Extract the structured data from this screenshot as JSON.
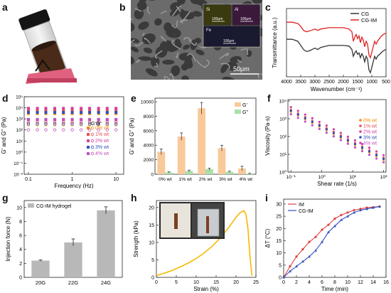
{
  "panels": {
    "a": {
      "label": "a"
    },
    "b": {
      "label": "b",
      "scale_main": "50μm",
      "inset_labels": [
        "Si",
        "Al",
        "Fe"
      ],
      "inset_scales": [
        "100μm",
        "100μm",
        "100μm"
      ]
    },
    "c": {
      "label": "c"
    },
    "d": {
      "label": "d"
    },
    "e": {
      "label": "e"
    },
    "f": {
      "label": "f"
    },
    "g": {
      "label": "g"
    },
    "h": {
      "label": "h"
    },
    "i": {
      "label": "i"
    }
  },
  "colors": {
    "cg": "#333333",
    "cgim": "#e02020",
    "orange_bar": "#f9c99a",
    "green_bar": "#a8e0a8",
    "gray_bar": "#b8b8b8",
    "strain_curve": "#f5b800",
    "im": "#e04040",
    "cgim_time": "#3050c0",
    "d_series": [
      "#f08c00",
      "#e85050",
      "#d23fa0",
      "#3050c0",
      "#c050c0"
    ]
  },
  "chart_data": [
    {
      "id": "c",
      "type": "line",
      "xlabel": "Wavenumber (cm⁻¹)",
      "ylabel": "Transmittance (a.u.)",
      "xticks": [
        "4000",
        "3500",
        "3000",
        "2500",
        "2000",
        "1500",
        "1000",
        "500"
      ],
      "xlim": [
        4000,
        500
      ],
      "ylim": [
        0,
        1
      ],
      "series": [
        {
          "name": "CG",
          "x": [
            4000,
            3800,
            3600,
            3500,
            3400,
            3300,
            3200,
            3000,
            2900,
            2800,
            2500,
            2200,
            2000,
            1800,
            1700,
            1650,
            1600,
            1550,
            1500,
            1450,
            1400,
            1350,
            1300,
            1250,
            1200,
            1150,
            1100,
            1050,
            1000,
            950,
            900,
            850,
            800,
            700,
            600,
            500
          ],
          "y": [
            0.55,
            0.55,
            0.52,
            0.46,
            0.4,
            0.37,
            0.38,
            0.42,
            0.4,
            0.43,
            0.46,
            0.46,
            0.46,
            0.45,
            0.4,
            0.3,
            0.35,
            0.38,
            0.33,
            0.35,
            0.28,
            0.34,
            0.3,
            0.22,
            0.3,
            0.26,
            0.1,
            0.06,
            0.14,
            0.22,
            0.3,
            0.26,
            0.3,
            0.34,
            0.38,
            0.4
          ]
        },
        {
          "name": "CG-IM",
          "x": [
            4000,
            3800,
            3600,
            3500,
            3400,
            3300,
            3200,
            3000,
            2900,
            2800,
            2500,
            2200,
            2000,
            1800,
            1700,
            1650,
            1600,
            1550,
            1500,
            1450,
            1400,
            1350,
            1300,
            1250,
            1200,
            1150,
            1100,
            1050,
            1000,
            950,
            900,
            850,
            800,
            700,
            600,
            500
          ],
          "y": [
            0.8,
            0.8,
            0.78,
            0.74,
            0.68,
            0.66,
            0.67,
            0.7,
            0.68,
            0.7,
            0.72,
            0.72,
            0.72,
            0.7,
            0.66,
            0.52,
            0.58,
            0.62,
            0.56,
            0.6,
            0.5,
            0.58,
            0.54,
            0.44,
            0.52,
            0.48,
            0.32,
            0.28,
            0.36,
            0.44,
            0.52,
            0.48,
            0.52,
            0.58,
            0.62,
            0.64
          ]
        }
      ]
    },
    {
      "id": "d",
      "type": "scatter",
      "xlabel": "Frequency (Hz)",
      "ylabel": "G' and G\" (Pa)",
      "xscale": "log",
      "yscale": "log",
      "xticks": [
        "0.1",
        "1",
        "10"
      ],
      "yticks": [
        "10⁻²",
        "10⁻¹",
        "10⁰",
        "10¹",
        "10²",
        "10³",
        "10⁴",
        "10⁵"
      ],
      "xlim": [
        0.08,
        15
      ],
      "ylim": [
        0.01,
        100000
      ],
      "legend_title": "G'G\"",
      "x": [
        0.1,
        0.16,
        0.25,
        0.4,
        0.63,
        1.0,
        1.6,
        2.5,
        4.0,
        6.3,
        10
      ],
      "series": [
        {
          "name": "0% wt",
          "gp": 3000,
          "gpp": 300
        },
        {
          "name": "1% wt",
          "gp": 5200,
          "gpp": 500
        },
        {
          "name": "2% wt",
          "gp": 9000,
          "gpp": 800
        },
        {
          "name": "3% wt",
          "gp": 3800,
          "gpp": 350
        },
        {
          "name": "4% wt",
          "gp": 900,
          "gpp": 100
        }
      ]
    },
    {
      "id": "e",
      "type": "bar",
      "xlabel": "",
      "ylabel": "G' and G\" (Pa)",
      "categories": [
        "0% wt",
        "1% wt",
        "2% wt",
        "3% wt",
        "4% wt"
      ],
      "yticks": [
        "0",
        "2000",
        "4000",
        "6000",
        "8000",
        "10000"
      ],
      "ylim": [
        0,
        10500
      ],
      "series": [
        {
          "name": "G'",
          "values": [
            3100,
            5200,
            9100,
            3600,
            800
          ],
          "errors": [
            400,
            500,
            800,
            400,
            300
          ]
        },
        {
          "name": "G\"",
          "values": [
            250,
            450,
            700,
            330,
            80
          ],
          "errors": [
            80,
            120,
            150,
            100,
            50
          ]
        }
      ]
    },
    {
      "id": "f",
      "type": "scatter",
      "xlabel": "Shear rate (1/s)",
      "ylabel": "Viscosity (Pa·s)",
      "xscale": "log",
      "yscale": "log",
      "xticks": [
        "10⁻¹",
        "10⁰",
        "10¹",
        "10²"
      ],
      "yticks": [
        "10⁰",
        "10¹",
        "10²",
        "10³",
        "10⁴"
      ],
      "xlim": [
        0.08,
        120
      ],
      "ylim": [
        1,
        12000
      ],
      "series": [
        {
          "name": "0% wt",
          "k": 2500
        },
        {
          "name": "1% wt",
          "k": 3200
        },
        {
          "name": "2% wt",
          "k": 4500
        },
        {
          "name": "3% wt",
          "k": 2800
        },
        {
          "name": "4% wt",
          "k": 1800
        }
      ]
    },
    {
      "id": "g",
      "type": "bar",
      "xlabel": "",
      "ylabel": "Injection force (N)",
      "categories": [
        "20G",
        "22G",
        "24G"
      ],
      "values": [
        2.4,
        5.0,
        9.6
      ],
      "errors": [
        0.1,
        0.5,
        0.5
      ],
      "yticks": [
        "0",
        "2",
        "4",
        "6",
        "8",
        "10"
      ],
      "ylim": [
        0,
        11
      ],
      "legend": "CG-IM hydrogel"
    },
    {
      "id": "h",
      "type": "line",
      "xlabel": "Strain (%)",
      "ylabel": "Strength (kPa)",
      "xticks": [
        "0",
        "5",
        "10",
        "15",
        "20",
        "25"
      ],
      "yticks": [
        "0",
        "5",
        "10",
        "15",
        "20"
      ],
      "xlim": [
        0,
        25
      ],
      "ylim": [
        0,
        22
      ],
      "x": [
        0,
        2,
        4,
        6,
        8,
        10,
        12,
        14,
        16,
        18,
        20,
        21,
        22,
        22.5,
        23,
        23.5,
        24
      ],
      "y": [
        0.5,
        1.2,
        2.0,
        3.0,
        4.1,
        5.4,
        7.0,
        8.9,
        11.2,
        14.0,
        17.2,
        18.5,
        19.1,
        18.0,
        14.0,
        6.0,
        0.5
      ]
    },
    {
      "id": "i",
      "type": "line",
      "xlabel": "Time (min)",
      "ylabel": "ΔT (°C)",
      "xticks": [
        "0",
        "2",
        "4",
        "6",
        "8",
        "10",
        "12",
        "14",
        "16"
      ],
      "yticks": [
        "0",
        "5",
        "10",
        "15",
        "20",
        "25",
        "30"
      ],
      "xlim": [
        0,
        16
      ],
      "ylim": [
        0,
        32
      ],
      "series": [
        {
          "name": "IM",
          "x": [
            0,
            1,
            2,
            3,
            4,
            5,
            6,
            7,
            8,
            9,
            10,
            11,
            12,
            13,
            14,
            15
          ],
          "y": [
            0,
            4.5,
            8.5,
            11.5,
            14.5,
            16.5,
            19.5,
            21.5,
            24.0,
            25.5,
            26.5,
            27.5,
            28.0,
            28.5,
            28.7,
            29.0
          ]
        },
        {
          "name": "CG-IM",
          "x": [
            0,
            1,
            2,
            3,
            4,
            5,
            6,
            7,
            8,
            9,
            10,
            11,
            12,
            13,
            14,
            15
          ],
          "y": [
            0,
            2.5,
            4.5,
            6.5,
            8.5,
            11.0,
            14.5,
            18.5,
            21.0,
            23.5,
            25.0,
            26.5,
            27.5,
            28.0,
            28.5,
            29.0
          ]
        }
      ]
    }
  ]
}
